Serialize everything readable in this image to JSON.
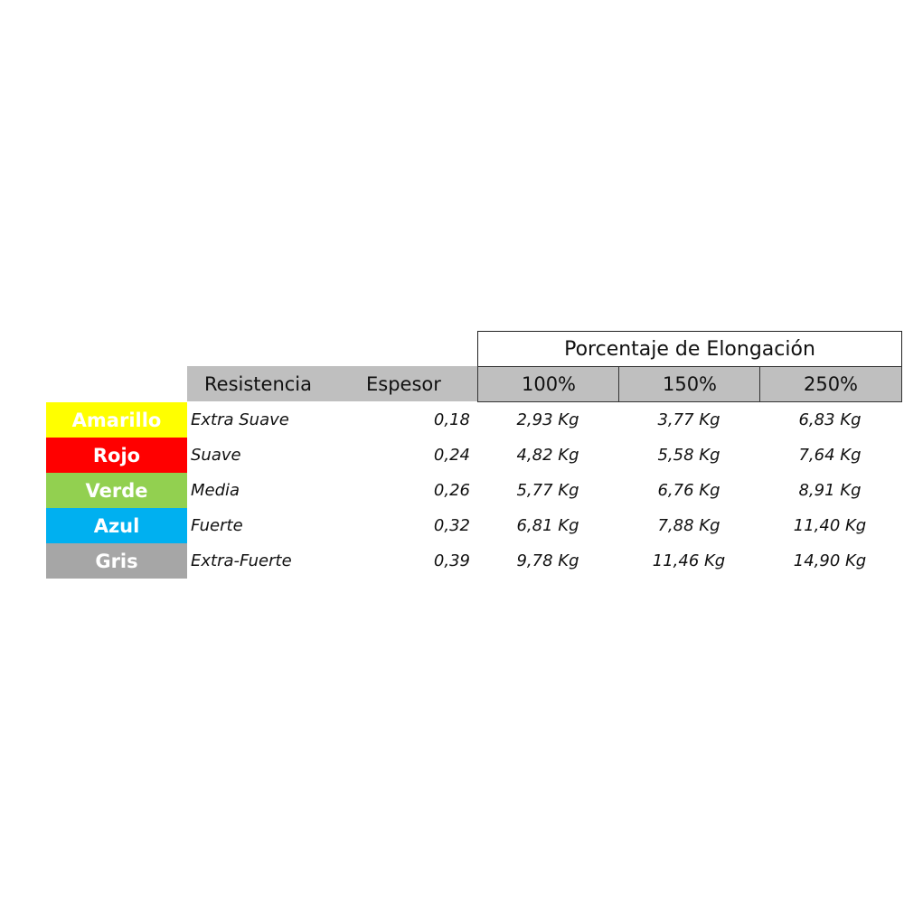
{
  "table": {
    "group_header": "Porcentaje de Elongación",
    "columns": {
      "resistance": "Resistencia",
      "thickness": "Espesor",
      "elongation": [
        "100%",
        "150%",
        "250%"
      ]
    },
    "rows": [
      {
        "color": "Amarillo",
        "color_hex": "#ffff00",
        "resistance": "Extra Suave",
        "thickness": "0,18",
        "values": [
          "2,93 Kg",
          "3,77 Kg",
          "6,83 Kg"
        ]
      },
      {
        "color": "Rojo",
        "color_hex": "#ff0000",
        "resistance": "Suave",
        "thickness": "0,24",
        "values": [
          "4,82 Kg",
          "5,58 Kg",
          "7,64 Kg"
        ]
      },
      {
        "color": "Verde",
        "color_hex": "#92d050",
        "resistance": "Media",
        "thickness": "0,26",
        "values": [
          "5,77 Kg",
          "6,76 Kg",
          "8,91 Kg"
        ]
      },
      {
        "color": "Azul",
        "color_hex": "#00b0f0",
        "resistance": "Fuerte",
        "thickness": "0,32",
        "values": [
          "6,81 Kg",
          "7,88 Kg",
          "11,40 Kg"
        ]
      },
      {
        "color": "Gris",
        "color_hex": "#a6a6a6",
        "resistance": "Extra-Fuerte",
        "thickness": "0,39",
        "values": [
          "9,78 Kg",
          "11,46 Kg",
          "14,90 Kg"
        ]
      }
    ]
  }
}
